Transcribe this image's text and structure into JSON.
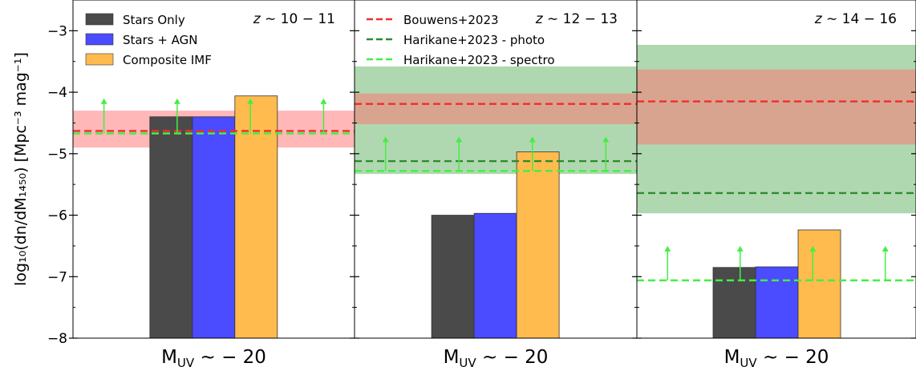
{
  "chart_data": {
    "type": "bar",
    "ylabel_main": "log₁₀(dn/dM₁₄₅₀)",
    "ylabel_units": "[Mpc⁻³ mag⁻¹]",
    "ylim": [
      -8,
      -2.5
    ],
    "yticks": [
      -8,
      -7,
      -6,
      -5,
      -4,
      -3
    ],
    "ytick_labels": [
      "−8",
      "−7",
      "−6",
      "−5",
      "−4",
      "−3"
    ],
    "bar_series": [
      {
        "name": "Stars Only",
        "color": "#4a4a4a"
      },
      {
        "name": "Stars + AGN",
        "color": "#4b4bff"
      },
      {
        "name": "Composite IMF",
        "color": "#ffbb4d"
      }
    ],
    "line_series": [
      {
        "name": "Bouwens+2023",
        "color": "#ef2d2d",
        "band_color": "#ff6f6f"
      },
      {
        "name": "Harikane+2023 - photo",
        "color": "#2d8c2d",
        "band_color": "#6fb86f"
      },
      {
        "name": "Harikane+2023 - spectro",
        "color": "#44ee44"
      }
    ],
    "panels": [
      {
        "title_z": "z",
        "title_range": "∼ 10 − 11",
        "title_pos": "top-right",
        "xlabel_sub": "UV",
        "xlabel_val": "∼ − 20",
        "bars": [
          -4.4,
          -4.4,
          -4.06
        ],
        "bouwens": {
          "value": -4.63,
          "band": [
            -4.9,
            -4.3
          ]
        },
        "photo": null,
        "spectro": {
          "value": -4.67,
          "arrow_top": -4.1
        }
      },
      {
        "title_z": "z",
        "title_range": "∼ 12 − 13",
        "title_pos": "top-right",
        "xlabel_sub": "UV",
        "xlabel_val": "∼ − 20",
        "bars": [
          -6.0,
          -5.97,
          -4.97
        ],
        "bouwens": {
          "value": -4.19,
          "band": [
            -4.52,
            -4.02
          ]
        },
        "photo": {
          "value": -5.12,
          "band": [
            -5.33,
            -3.58
          ]
        },
        "spectro": {
          "value": -5.28,
          "arrow_top": -4.72
        }
      },
      {
        "title_z": "z",
        "title_range": "∼ 14 − 16",
        "title_pos": "top-right",
        "xlabel_sub": "UV",
        "xlabel_val": "∼ − 20",
        "bars": [
          -6.85,
          -6.84,
          -6.24
        ],
        "bouwens": {
          "value": -4.15,
          "band": [
            -4.85,
            -3.63
          ]
        },
        "photo": {
          "value": -5.64,
          "band": [
            -5.97,
            -3.23
          ]
        },
        "spectro": {
          "value": -7.06,
          "arrow_top": -6.5
        }
      }
    ],
    "legend_left": [
      "Stars Only",
      "Stars + AGN",
      "Composite IMF"
    ],
    "legend_mid": [
      "Bouwens+2023",
      "Harikane+2023 - photo",
      "Harikane+2023 - spectro"
    ]
  }
}
